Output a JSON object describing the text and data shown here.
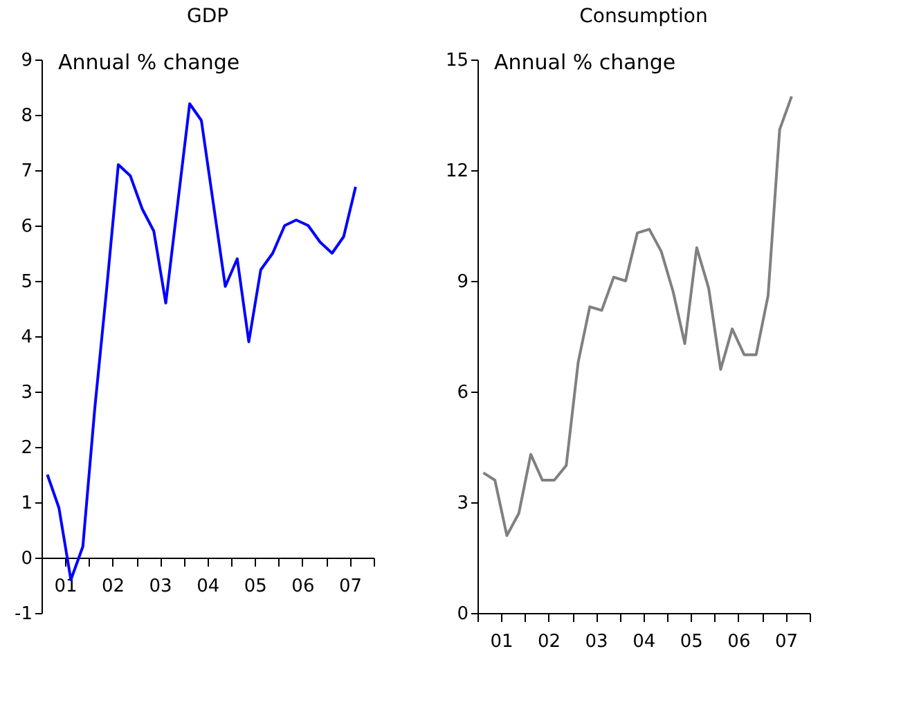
{
  "chart_data": [
    {
      "type": "line",
      "title": "GDP",
      "ylabel": "Annual % change",
      "x": [
        "2001-02-15",
        "2001-05-15",
        "2001-08-15",
        "2001-11-15",
        "2002-02-15",
        "2002-05-15",
        "2002-08-15",
        "2002-11-15",
        "2003-02-15",
        "2003-05-15",
        "2003-08-15",
        "2003-11-15",
        "2004-02-15",
        "2004-05-15",
        "2004-08-15",
        "2004-11-15",
        "2005-02-15",
        "2005-05-15",
        "2005-08-15",
        "2005-11-15",
        "2006-02-15",
        "2006-05-15",
        "2006-08-15",
        "2006-11-15",
        "2007-02-15",
        "2007-05-15",
        "2007-08-15"
      ],
      "series": [
        {
          "color": "#0000ff",
          "values": [
            1.5,
            0.9,
            -0.4,
            0.2,
            2.7,
            4.8,
            7.1,
            6.9,
            6.3,
            5.9,
            4.6,
            6.4,
            8.2,
            7.9,
            6.4,
            4.9,
            5.4,
            3.9,
            5.2,
            5.5,
            6.0,
            6.1,
            6.0,
            5.7,
            5.5,
            5.8,
            6.7
          ]
        }
      ],
      "xlim": [
        "2001-01-01",
        "2008-01-01"
      ],
      "xticks": [
        {
          "value": "2001-01-01",
          "label": null
        },
        {
          "value": "2001-07-01",
          "label": "01"
        },
        {
          "value": "2002-01-01",
          "label": null
        },
        {
          "value": "2002-07-01",
          "label": "02"
        },
        {
          "value": "2003-01-01",
          "label": null
        },
        {
          "value": "2003-07-01",
          "label": "03"
        },
        {
          "value": "2004-01-01",
          "label": null
        },
        {
          "value": "2004-07-01",
          "label": "04"
        },
        {
          "value": "2005-01-01",
          "label": null
        },
        {
          "value": "2005-07-01",
          "label": "05"
        },
        {
          "value": "2006-01-01",
          "label": null
        },
        {
          "value": "2006-07-01",
          "label": "06"
        },
        {
          "value": "2007-01-01",
          "label": null
        },
        {
          "value": "2007-07-01",
          "label": "07"
        },
        {
          "value": "2008-01-01",
          "label": null
        }
      ],
      "ylim": [
        -1,
        9
      ],
      "yticks": [
        -1,
        0,
        1,
        2,
        3,
        4,
        5,
        6,
        7,
        8,
        9
      ],
      "grid": false
    },
    {
      "type": "line",
      "title": "Consumption",
      "ylabel": "Annual % change",
      "x": [
        "2001-02-15",
        "2001-05-15",
        "2001-08-15",
        "2001-11-15",
        "2002-02-15",
        "2002-05-15",
        "2002-08-15",
        "2002-11-15",
        "2003-02-15",
        "2003-05-15",
        "2003-08-15",
        "2003-11-15",
        "2004-02-15",
        "2004-05-15",
        "2004-08-15",
        "2004-11-15",
        "2005-02-15",
        "2005-05-15",
        "2005-08-15",
        "2005-11-15",
        "2006-02-15",
        "2006-05-15",
        "2006-08-15",
        "2006-11-15",
        "2007-02-15",
        "2007-05-15",
        "2007-08-15"
      ],
      "series": [
        {
          "color": "#808080",
          "values": [
            3.8,
            3.6,
            2.1,
            2.7,
            4.3,
            3.6,
            3.6,
            4.0,
            6.8,
            8.3,
            8.2,
            9.1,
            9.0,
            10.3,
            10.4,
            9.8,
            8.7,
            7.3,
            9.9,
            8.8,
            6.6,
            7.7,
            7.0,
            7.0,
            8.6,
            13.1,
            14.0
          ]
        }
      ],
      "xlim": [
        "2001-01-01",
        "2008-01-01"
      ],
      "xticks": [
        {
          "value": "2001-01-01",
          "label": null
        },
        {
          "value": "2001-07-01",
          "label": "01"
        },
        {
          "value": "2002-01-01",
          "label": null
        },
        {
          "value": "2002-07-01",
          "label": "02"
        },
        {
          "value": "2003-01-01",
          "label": null
        },
        {
          "value": "2003-07-01",
          "label": "03"
        },
        {
          "value": "2004-01-01",
          "label": null
        },
        {
          "value": "2004-07-01",
          "label": "04"
        },
        {
          "value": "2005-01-01",
          "label": null
        },
        {
          "value": "2005-07-01",
          "label": "05"
        },
        {
          "value": "2006-01-01",
          "label": null
        },
        {
          "value": "2006-07-01",
          "label": "06"
        },
        {
          "value": "2007-01-01",
          "label": null
        },
        {
          "value": "2007-07-01",
          "label": "07"
        },
        {
          "value": "2008-01-01",
          "label": null
        }
      ],
      "ylim": [
        0,
        15
      ],
      "yticks": [
        0,
        3,
        6,
        9,
        12,
        15
      ],
      "grid": false
    }
  ]
}
